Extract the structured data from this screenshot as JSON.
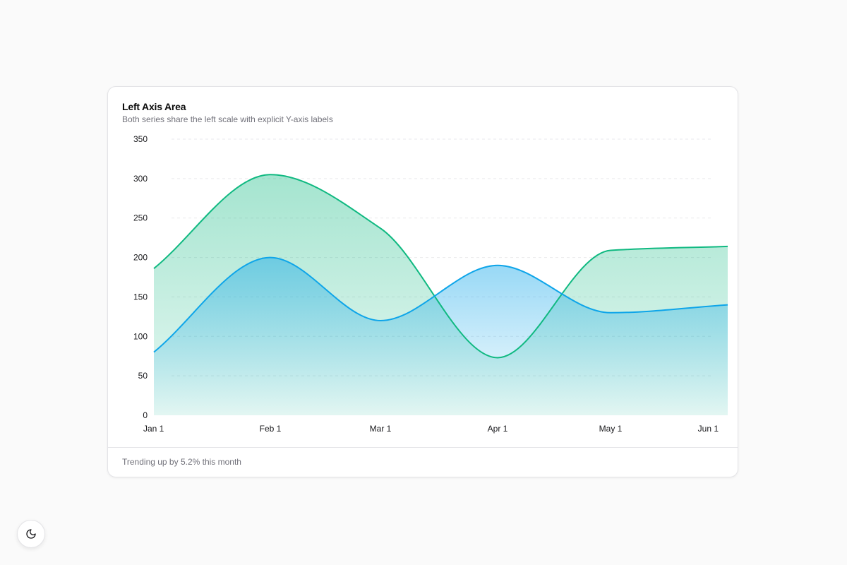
{
  "card": {
    "title": "Left Axis Area",
    "description": "Both series share the left scale with explicit Y-axis labels",
    "footer": "Trending up by 5.2% this month"
  },
  "theme_toggle": {
    "icon": "moon-icon"
  },
  "chart_data": {
    "type": "area",
    "title": "Left Axis Area",
    "subtitle": "Both series share the left scale with explicit Y-axis labels",
    "xlabel": "",
    "ylabel": "",
    "x": [
      "Jan 1",
      "Feb 1",
      "Mar 1",
      "Apr 1",
      "May 1",
      "Jun 1"
    ],
    "ylim": [
      0,
      350
    ],
    "yticks": [
      0,
      50,
      100,
      150,
      200,
      250,
      300,
      350
    ],
    "grid": true,
    "legend": "none",
    "series": [
      {
        "values": [
          80,
          200,
          120,
          190,
          130,
          140
        ],
        "color": "#0ea5e9"
      },
      {
        "values": [
          186,
          305,
          237,
          73,
          209,
          214
        ],
        "color": "#10b981"
      }
    ]
  }
}
